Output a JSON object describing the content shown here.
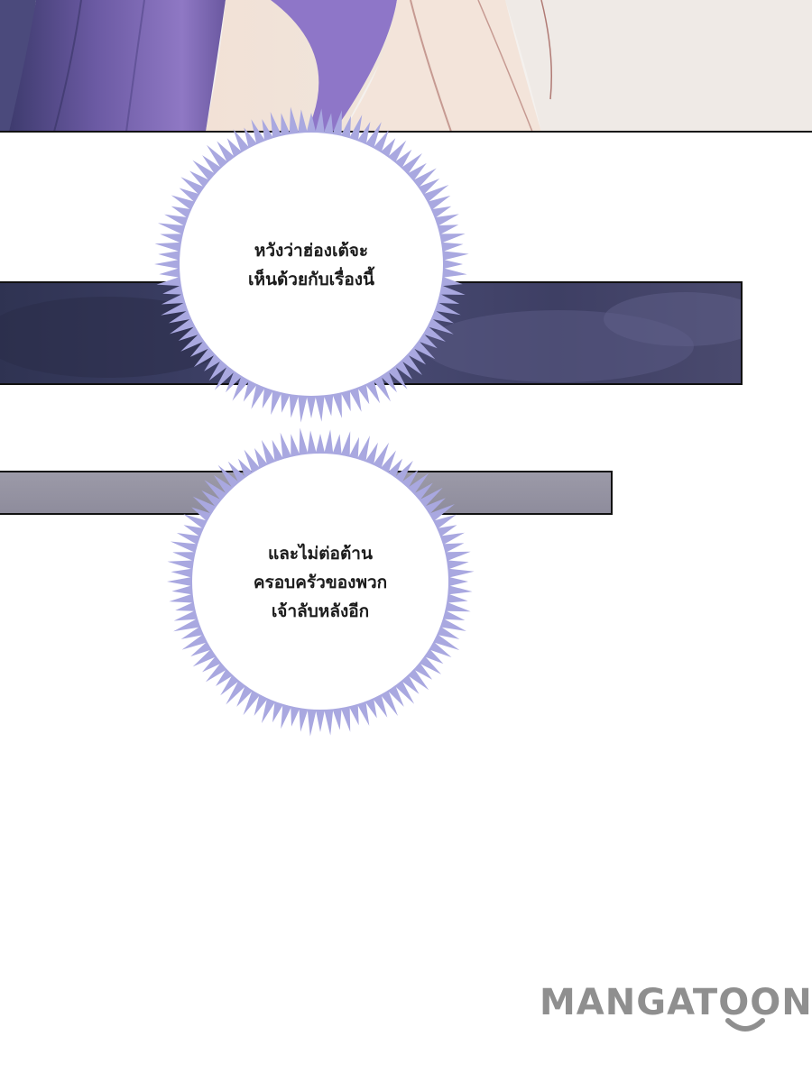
{
  "bubbles": [
    {
      "lines": [
        "หวังว่าฮ่องเต้จะ",
        "เห็นด้วยกับเรื่องนี้"
      ]
    },
    {
      "lines": [
        "และไม่ต่อต้าน",
        "ครอบครัวของพวก",
        "เจ้าลับหลังอีก"
      ]
    }
  ],
  "watermark": {
    "text": "MANGATOON"
  },
  "colors": {
    "bubble_spikes": "#a9a8e0",
    "night_sky": "#3a3d62",
    "hair": "#6f5aa6",
    "logo": "#8f8f8f"
  }
}
